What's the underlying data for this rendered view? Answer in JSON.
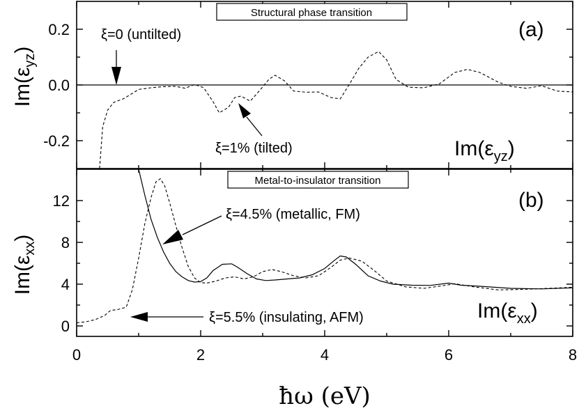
{
  "chart_data": [
    {
      "type": "line",
      "panel_tag": "(a)",
      "box_title": "Structural phase transition",
      "ylabel_main": "Im(ε",
      "ylabel_sub": "yz",
      "ylabel_close": ")",
      "quantity_main": "Im(ε",
      "quantity_sub": "yz",
      "quantity_close": ")",
      "xlim": [
        0,
        8
      ],
      "ylim": [
        -0.3,
        0.3
      ],
      "yticks": [
        -0.2,
        0.0,
        0.2
      ],
      "ytick_labels": [
        "-0.2",
        "0.0",
        "0.2"
      ],
      "annotations": [
        "ξ=0 (untilted)",
        "ξ=1% (tilted)"
      ],
      "series": [
        {
          "style": "solid",
          "x": [
            0,
            8
          ],
          "y": [
            0.0,
            0.0
          ]
        },
        {
          "style": "dashed",
          "x": [
            0.37,
            0.42,
            0.5,
            0.6,
            0.75,
            0.9,
            1.0,
            1.2,
            1.4,
            1.6,
            1.75,
            1.9,
            2.05,
            2.2,
            2.3,
            2.45,
            2.55,
            2.65,
            2.8,
            2.95,
            3.1,
            3.2,
            3.35,
            3.5,
            3.7,
            3.9,
            4.1,
            4.25,
            4.4,
            4.55,
            4.7,
            4.87,
            5.0,
            5.15,
            5.35,
            5.6,
            5.85,
            6.1,
            6.3,
            6.5,
            6.8,
            7.0,
            7.25,
            7.5,
            7.75,
            8.0
          ],
          "y": [
            -0.3,
            -0.15,
            -0.09,
            -0.062,
            -0.05,
            -0.03,
            -0.016,
            -0.01,
            -0.006,
            -0.005,
            -0.012,
            0.002,
            -0.01,
            -0.06,
            -0.1,
            -0.08,
            -0.045,
            -0.04,
            -0.058,
            -0.02,
            0.02,
            0.035,
            0.015,
            -0.022,
            -0.026,
            -0.025,
            -0.045,
            -0.05,
            0.003,
            0.06,
            0.1,
            0.12,
            0.09,
            0.02,
            -0.008,
            -0.01,
            0.004,
            0.045,
            0.056,
            0.045,
            0.01,
            -0.005,
            -0.012,
            -0.003,
            -0.022,
            -0.025
          ]
        }
      ]
    },
    {
      "type": "line",
      "panel_tag": "(b)",
      "box_title": "Metal-to-insulator transition",
      "ylabel_main": "Im(ε",
      "ylabel_sub": "xx",
      "ylabel_close": ")",
      "quantity_main": "Im(ε",
      "quantity_sub": "xx",
      "quantity_close": ")",
      "xlabel": "ħω (eV)",
      "xlim": [
        0,
        8
      ],
      "ylim": [
        -1,
        15
      ],
      "xticks": [
        0,
        2,
        4,
        6,
        8
      ],
      "xtick_labels": [
        "0",
        "2",
        "4",
        "6",
        "8"
      ],
      "yticks": [
        0,
        4,
        8,
        12
      ],
      "ytick_labels": [
        "0",
        "4",
        "8",
        "12"
      ],
      "annotations": [
        "ξ=4.5% (metallic, FM)",
        "ξ=5.5% (insulating, AFM)"
      ],
      "series": [
        {
          "name": "ξ=4.5% (metallic, FM)",
          "style": "solid",
          "x": [
            1.0,
            1.1,
            1.2,
            1.3,
            1.4,
            1.5,
            1.6,
            1.7,
            1.8,
            1.9,
            2.0,
            2.1,
            2.2,
            2.35,
            2.5,
            2.6,
            2.75,
            2.9,
            3.05,
            3.2,
            3.4,
            3.6,
            3.8,
            4.0,
            4.15,
            4.25,
            4.35,
            4.5,
            4.7,
            4.9,
            5.1,
            5.4,
            5.7,
            6.0,
            6.2,
            6.5,
            7.0,
            7.5,
            8.0
          ],
          "y": [
            15.3,
            12.5,
            10.2,
            8.5,
            7.1,
            6.0,
            5.2,
            4.7,
            4.35,
            4.2,
            4.25,
            4.6,
            5.3,
            5.9,
            5.95,
            5.6,
            5.0,
            4.5,
            4.35,
            4.4,
            4.5,
            4.6,
            4.9,
            5.5,
            6.25,
            6.7,
            6.6,
            5.9,
            4.8,
            4.3,
            4.0,
            3.9,
            3.88,
            4.1,
            3.9,
            3.8,
            3.6,
            3.55,
            3.65
          ]
        },
        {
          "name": "ξ=5.5% (insulating, AFM)",
          "style": "dashed",
          "x": [
            0.0,
            0.15,
            0.3,
            0.45,
            0.55,
            0.65,
            0.8,
            0.9,
            1.0,
            1.1,
            1.2,
            1.28,
            1.35,
            1.42,
            1.5,
            1.6,
            1.7,
            1.8,
            1.9,
            2.0,
            2.1,
            2.25,
            2.4,
            2.55,
            2.7,
            2.85,
            3.0,
            3.15,
            3.3,
            3.5,
            3.7,
            3.9,
            4.1,
            4.25,
            4.4,
            4.6,
            4.8,
            5.0,
            5.3,
            5.6,
            5.9,
            6.1,
            6.4,
            6.8,
            7.2,
            7.6,
            8.0
          ],
          "y": [
            0.3,
            0.4,
            0.6,
            1.0,
            1.5,
            1.55,
            1.8,
            3.5,
            6.5,
            9.8,
            12.3,
            13.8,
            14.1,
            13.4,
            11.8,
            9.6,
            7.5,
            5.7,
            4.6,
            4.15,
            4.1,
            4.3,
            4.6,
            4.7,
            4.5,
            4.7,
            5.2,
            5.4,
            5.2,
            4.8,
            4.6,
            4.8,
            5.6,
            6.3,
            6.5,
            6.2,
            5.3,
            4.3,
            3.75,
            3.6,
            3.85,
            4.05,
            3.75,
            3.45,
            3.5,
            3.6,
            3.7
          ]
        }
      ]
    }
  ]
}
